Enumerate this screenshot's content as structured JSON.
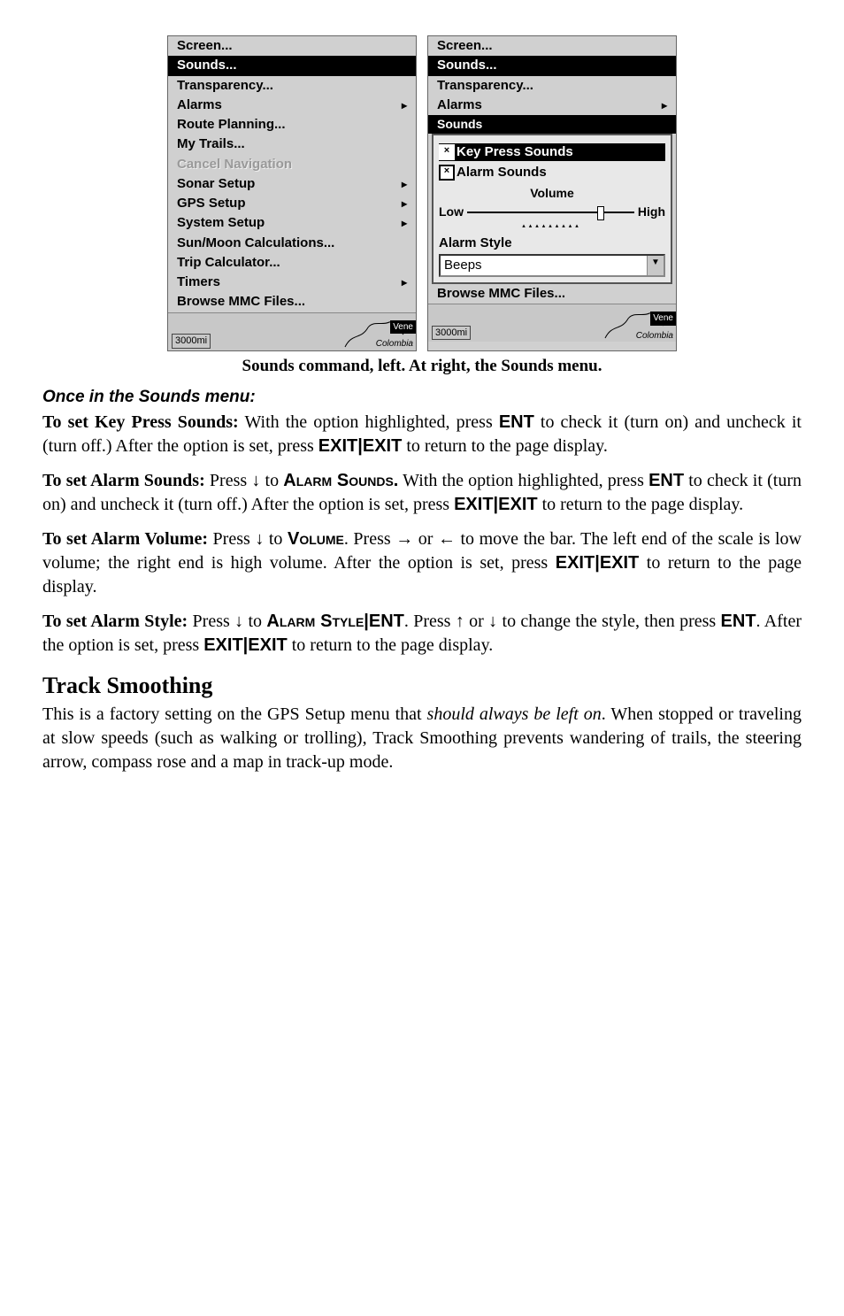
{
  "figure": {
    "left_menu": {
      "items": [
        {
          "label": "Screen...",
          "submenu": false
        },
        {
          "label": "Sounds...",
          "selected": true,
          "submenu": false
        },
        {
          "label": "Transparency...",
          "submenu": false
        },
        {
          "label": "Alarms",
          "submenu": true
        },
        {
          "label": "Route Planning...",
          "submenu": false
        },
        {
          "label": "My Trails...",
          "submenu": false
        },
        {
          "label": "Cancel Navigation",
          "disabled": true,
          "submenu": false
        },
        {
          "label": "Sonar Setup",
          "submenu": true
        },
        {
          "label": "GPS Setup",
          "submenu": true
        },
        {
          "label": "System Setup",
          "submenu": true
        },
        {
          "label": "Sun/Moon Calculations...",
          "submenu": false
        },
        {
          "label": "Trip Calculator...",
          "submenu": false
        },
        {
          "label": "Timers",
          "submenu": true
        },
        {
          "label": "Browse MMC Files...",
          "submenu": false
        }
      ],
      "map_scale": "3000mi",
      "map_right": "Vene",
      "map_br": "Colombia"
    },
    "right_menu": {
      "top_items": [
        {
          "label": "Screen...",
          "submenu": false
        },
        {
          "label": "Sounds...",
          "selected": true,
          "submenu": false
        },
        {
          "label": "Transparency...",
          "submenu": false
        },
        {
          "label": "Alarms",
          "submenu": true
        }
      ],
      "panel_title": "Sounds",
      "keypress_label": "Key Press Sounds",
      "alarm_sounds_label": "Alarm Sounds",
      "volume_label": "Volume",
      "low_label": "Low",
      "high_label": "High",
      "slider_percent": 78,
      "alarm_style_label": "Alarm Style",
      "alarm_style_value": "Beeps",
      "browse_label": "Browse MMC Files...",
      "map_scale": "3000mi",
      "map_right": "Vene",
      "map_br": "Colombia"
    },
    "caption": "Sounds command, left. At right, the Sounds menu."
  },
  "body": {
    "once_heading": "Once in the Sounds menu:",
    "p1_lead": "To set Key Press Sounds:",
    "p1_rest_a": " With the option highlighted, press ",
    "p1_ent": "ENT",
    "p1_rest_b": " to check it (turn on) and uncheck it (turn off.) After the option is set, press ",
    "p1_exit": "EXIT",
    "p1_rest_c": " to return to the page display.",
    "p2_lead": "To set Alarm Sounds:",
    "p2_a": " Press ↓ to ",
    "p2_alarm": "Alarm Sounds.",
    "p2_b": " With the option highlighted, press ",
    "p2_c": " to check it (turn on) and uncheck it (turn off.) After the option is set, press ",
    "p2_d": " to return to the page display.",
    "p3_lead": "To set Alarm Volume:",
    "p3_a": " Press ↓ to ",
    "p3_vol": "Volume",
    "p3_b": ". Press → or ←  to move the bar. The left end of the scale is low volume; the right end is high volume. After the option is set, press ",
    "p3_c": " to return to the page display.",
    "p4_lead": "To set Alarm Style:",
    "p4_a": " Press ↓ to ",
    "p4_style": "Alarm Style",
    "p4_b": ". Press ↑ or ↓ to change the style, then press ",
    "p4_c": ". After the option is set, press ",
    "p4_d": " to return to the page display.",
    "track_heading": "Track Smoothing",
    "track_p_a": "This is a factory setting on the GPS Setup menu that ",
    "track_p_i": "should always be left on",
    "track_p_b": ". When stopped or traveling at slow speeds (such as walking or trolling), Track Smoothing prevents wandering of trails, the steering arrow, compass rose and a map in track-up mode."
  }
}
